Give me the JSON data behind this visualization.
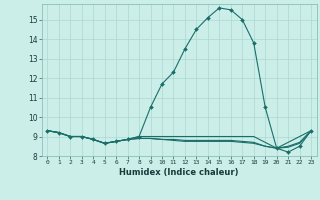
{
  "xlabel": "Humidex (Indice chaleur)",
  "ylabel": "",
  "background_color": "#cceee8",
  "line_color": "#1a6e6a",
  "grid_color": "#aad8d0",
  "xlim": [
    -0.5,
    23.5
  ],
  "ylim": [
    8,
    15.8
  ],
  "yticks": [
    8,
    9,
    10,
    11,
    12,
    13,
    14,
    15
  ],
  "xticks": [
    0,
    1,
    2,
    3,
    4,
    5,
    6,
    7,
    8,
    9,
    10,
    11,
    12,
    13,
    14,
    15,
    16,
    17,
    18,
    19,
    20,
    21,
    22,
    23
  ],
  "series": [
    {
      "x": [
        0,
        1,
        2,
        3,
        4,
        5,
        6,
        7,
        8,
        9,
        10,
        11,
        12,
        13,
        14,
        15,
        16,
        17,
        18,
        19,
        20,
        21,
        22,
        23
      ],
      "y": [
        9.3,
        9.2,
        9.0,
        9.0,
        8.85,
        8.65,
        8.75,
        8.85,
        9.0,
        10.5,
        11.7,
        12.3,
        13.5,
        14.5,
        15.1,
        15.6,
        15.5,
        15.0,
        13.8,
        10.5,
        8.4,
        8.2,
        8.5,
        9.3
      ],
      "marker": true
    },
    {
      "x": [
        0,
        1,
        2,
        3,
        4,
        5,
        6,
        7,
        8,
        9,
        10,
        11,
        12,
        13,
        14,
        15,
        16,
        17,
        18,
        19,
        20,
        21,
        22,
        23
      ],
      "y": [
        9.3,
        9.2,
        9.0,
        9.0,
        8.85,
        8.65,
        8.75,
        8.85,
        9.0,
        9.0,
        9.0,
        9.0,
        9.0,
        9.0,
        9.0,
        9.0,
        9.0,
        9.0,
        9.0,
        8.7,
        8.4,
        8.7,
        9.0,
        9.3
      ],
      "marker": false
    },
    {
      "x": [
        0,
        1,
        2,
        3,
        4,
        5,
        6,
        7,
        8,
        9,
        10,
        11,
        12,
        13,
        14,
        15,
        16,
        17,
        18,
        19,
        20,
        21,
        22,
        23
      ],
      "y": [
        9.3,
        9.2,
        9.0,
        9.0,
        8.85,
        8.65,
        8.75,
        8.85,
        8.9,
        8.9,
        8.85,
        8.85,
        8.8,
        8.8,
        8.8,
        8.8,
        8.8,
        8.75,
        8.7,
        8.5,
        8.4,
        8.5,
        8.7,
        9.3
      ],
      "marker": false
    },
    {
      "x": [
        0,
        1,
        2,
        3,
        4,
        5,
        6,
        7,
        8,
        9,
        10,
        11,
        12,
        13,
        14,
        15,
        16,
        17,
        18,
        19,
        20,
        21,
        22,
        23
      ],
      "y": [
        9.3,
        9.2,
        9.0,
        9.0,
        8.85,
        8.65,
        8.75,
        8.85,
        8.9,
        8.9,
        8.85,
        8.8,
        8.75,
        8.75,
        8.75,
        8.75,
        8.75,
        8.7,
        8.65,
        8.5,
        8.4,
        8.45,
        8.65,
        9.3
      ],
      "marker": false
    }
  ]
}
